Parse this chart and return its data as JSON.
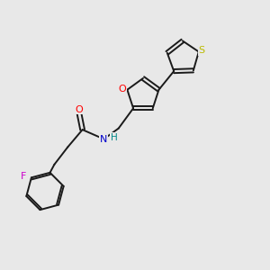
{
  "background_color": "#e8e8e8",
  "bond_color": "#1a1a1a",
  "atom_colors": {
    "O": "#ff0000",
    "N": "#0000cc",
    "H": "#008888",
    "F": "#cc00cc",
    "S": "#bbbb00"
  },
  "lw": 1.4,
  "fontsize": 7.5
}
